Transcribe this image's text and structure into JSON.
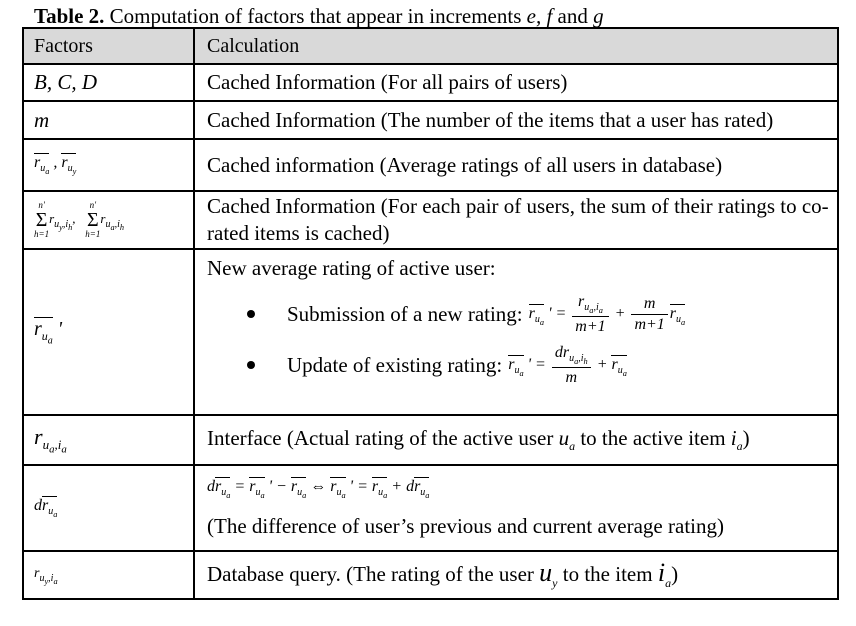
{
  "caption": {
    "label": "Table 2.",
    "text": " Computation of factors that appear in increments ",
    "vars": "e, f",
    "and": " and ",
    "last": "g"
  },
  "header": {
    "col1": "Factors",
    "col2": "Calculation"
  },
  "rows": {
    "bcd": {
      "factor": "B, C, D",
      "calc": "Cached Information (For all pairs of users)"
    },
    "m": {
      "factor": "m",
      "calc": "Cached Information (The number of the items that a user has rated)"
    },
    "avg": {
      "calc": "Cached information (Average ratings of all users in database)"
    },
    "sum": {
      "calc": "Cached Information (For each pair of users, the sum of their ratings to co-rated items is cached)"
    },
    "new_avg": {
      "title": "New average rating of active user:",
      "bullet1": "Submission of a new rating:",
      "bullet2": "Update of existing rating:"
    },
    "actual": {
      "calc_pre": "Interface (Actual rating of the active user ",
      "calc_mid": " to the active item ",
      "calc_post": ")"
    },
    "diff": {
      "calc": "(The difference of user’s previous and current average rating)"
    },
    "query": {
      "calc_pre": "Database query. (The rating of the user ",
      "calc_mid": " to the item ",
      "calc_post": ")"
    }
  }
}
